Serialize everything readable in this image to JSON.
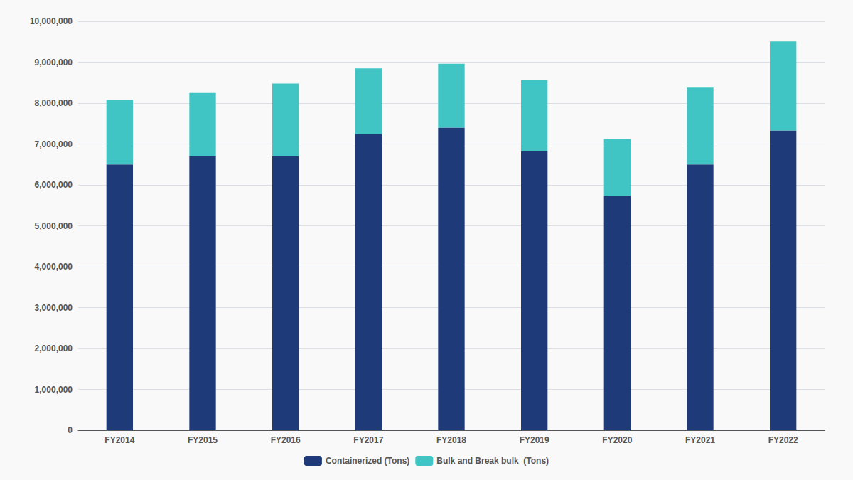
{
  "chart_data": {
    "type": "bar",
    "categories": [
      "FY2014",
      "FY2015",
      "FY2016",
      "FY2017",
      "FY2018",
      "FY2019",
      "FY2020",
      "FY2021",
      "FY2022"
    ],
    "series": [
      {
        "name": "Containerized (Tons)",
        "color": "#1e3a78",
        "values": [
          6500000,
          6700000,
          6700000,
          7250000,
          7400000,
          6820000,
          5720000,
          6500000,
          7330000
        ]
      },
      {
        "name": "Bulk and Break bulk  (Tons)",
        "color": "#40c4c4",
        "values": [
          1580000,
          1550000,
          1780000,
          1600000,
          1560000,
          1740000,
          1400000,
          1880000,
          2180000
        ]
      }
    ],
    "stacked": true,
    "ylim": [
      0,
      10000000
    ],
    "yticks": [
      0,
      {
        "value": 1000000,
        "label": "1,000,000"
      },
      {
        "value": 2000000,
        "label": "2,000,000"
      },
      {
        "value": 3000000,
        "label": "3,000,000"
      },
      {
        "value": 4000000,
        "label": "4,000,000"
      },
      {
        "value": 5000000,
        "label": "5,000,000"
      },
      {
        "value": 6000000,
        "label": "6,000,000"
      },
      {
        "value": 7000000,
        "label": "7,000,000"
      },
      {
        "value": 8000000,
        "label": "8,000,000"
      },
      {
        "value": 9000000,
        "label": "9,000,000"
      },
      {
        "value": 10000000,
        "label": "10,000,000"
      }
    ],
    "grid": true,
    "legend": "bottom"
  }
}
